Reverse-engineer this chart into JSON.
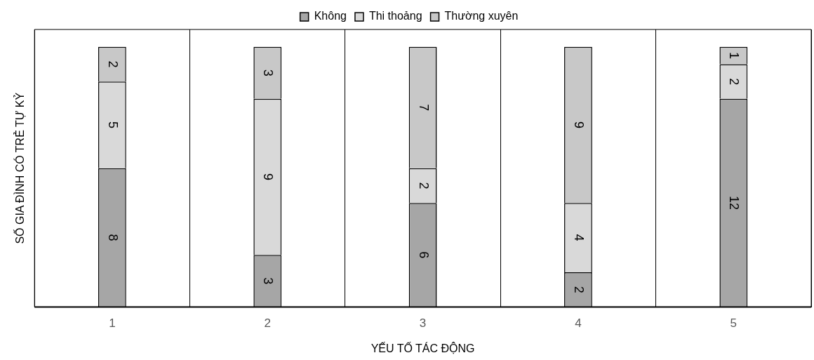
{
  "chart_data": {
    "type": "bar",
    "stacked": true,
    "xlabel": "YẾU TỐ TÁC ĐỘNG",
    "ylabel": "SỐ GIA ĐÌNH CÓ TRẺ TỰ KỶ",
    "categories": [
      "1",
      "2",
      "3",
      "4",
      "5"
    ],
    "series": [
      {
        "name": "Không",
        "color": "#a6a6a6",
        "values": [
          8,
          3,
          6,
          2,
          12
        ]
      },
      {
        "name": "Thi thoảng",
        "color": "#d9d9d9",
        "values": [
          5,
          9,
          2,
          4,
          2
        ]
      },
      {
        "name": "Thường xuyên",
        "color": "#c8c8c8",
        "values": [
          2,
          3,
          7,
          9,
          1
        ]
      }
    ],
    "ylim": [
      0,
      16
    ],
    "tick_labels": "x",
    "grid": "x",
    "legend": "top",
    "data_labels": true
  }
}
